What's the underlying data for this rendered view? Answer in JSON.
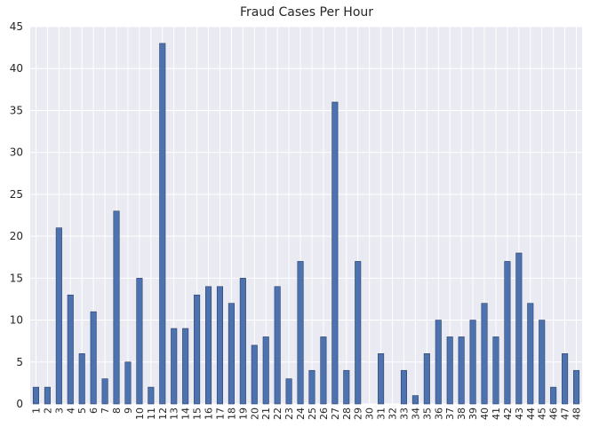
{
  "chart_data": {
    "type": "bar",
    "title": "Fraud Cases Per Hour",
    "xlabel": "",
    "ylabel": "",
    "categories": [
      "1",
      "2",
      "3",
      "4",
      "5",
      "6",
      "7",
      "8",
      "9",
      "10",
      "11",
      "12",
      "13",
      "14",
      "15",
      "16",
      "17",
      "18",
      "19",
      "20",
      "21",
      "22",
      "23",
      "24",
      "25",
      "26",
      "27",
      "28",
      "29",
      "30",
      "31",
      "32",
      "33",
      "34",
      "35",
      "36",
      "37",
      "38",
      "39",
      "40",
      "41",
      "42",
      "43",
      "44",
      "45",
      "46",
      "47",
      "48"
    ],
    "values": [
      2,
      2,
      21,
      13,
      6,
      11,
      3,
      23,
      5,
      15,
      2,
      43,
      9,
      9,
      13,
      14,
      14,
      12,
      15,
      7,
      8,
      14,
      3,
      17,
      4,
      8,
      36,
      4,
      17,
      0,
      6,
      0,
      4,
      1,
      6,
      10,
      8,
      8,
      10,
      12,
      8,
      17,
      18,
      12,
      10,
      2,
      6,
      4
    ],
    "ylim": [
      0,
      45
    ],
    "yticks": [
      0,
      5,
      10,
      15,
      20,
      25,
      30,
      35,
      40,
      45
    ],
    "grid": true,
    "colors": {
      "bar": "#4c72b0",
      "bar_edge": "#2b3f66",
      "background": "#eaeaf2",
      "grid": "#ffffff"
    }
  }
}
